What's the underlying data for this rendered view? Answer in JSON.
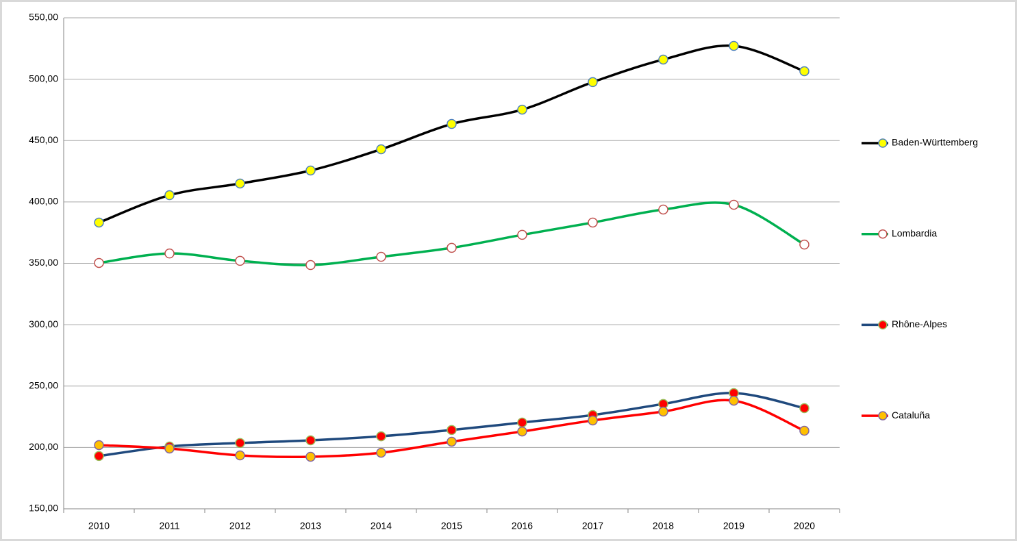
{
  "chart_data": {
    "type": "line",
    "smooth": true,
    "categories": [
      "2010",
      "2011",
      "2012",
      "2013",
      "2014",
      "2015",
      "2016",
      "2017",
      "2018",
      "2019",
      "2020"
    ],
    "series": [
      {
        "name": "Baden-Württemberg",
        "color": "#000000",
        "marker_color": "#ffff00",
        "marker_edge": "#4f81bd",
        "values": [
          383.2,
          405.5,
          415,
          425.6,
          442.9,
          463.5,
          475.2,
          497.6,
          516,
          527.1,
          506.5
        ]
      },
      {
        "name": "Lombardia",
        "color": "#00b050",
        "marker_color": "#ffffff",
        "marker_edge": "#c0504d",
        "values": [
          350.3,
          358,
          352,
          348.6,
          355.3,
          362.6,
          373.2,
          383.2,
          393.8,
          397.7,
          365.3
        ]
      },
      {
        "name": "Rhône-Alpes",
        "color": "#1f497d",
        "marker_color": "#ff0000",
        "marker_edge": "#9bbb59",
        "values": [
          193,
          200.8,
          203.6,
          205.8,
          209.1,
          214.2,
          220.3,
          226.4,
          235.4,
          244.3,
          232
        ]
      },
      {
        "name": "Cataluña",
        "color": "#ff0000",
        "marker_color": "#ffc000",
        "marker_edge": "#8064a2",
        "values": [
          201.9,
          199.1,
          193.5,
          192.4,
          195.7,
          204.7,
          213,
          222,
          229.2,
          238.1,
          213.6
        ]
      }
    ],
    "ylim": [
      150,
      550
    ],
    "yticks": [
      {
        "value": 150,
        "label": "150,00"
      },
      {
        "value": 200,
        "label": "200,00"
      },
      {
        "value": 250,
        "label": "250,00"
      },
      {
        "value": 300,
        "label": "300,00"
      },
      {
        "value": 350,
        "label": "350,00"
      },
      {
        "value": 400,
        "label": "400,00"
      },
      {
        "value": 450,
        "label": "450,00"
      },
      {
        "value": 500,
        "label": "500,00"
      },
      {
        "value": 550,
        "label": "550,00"
      }
    ],
    "grid": true,
    "legend": "right"
  }
}
